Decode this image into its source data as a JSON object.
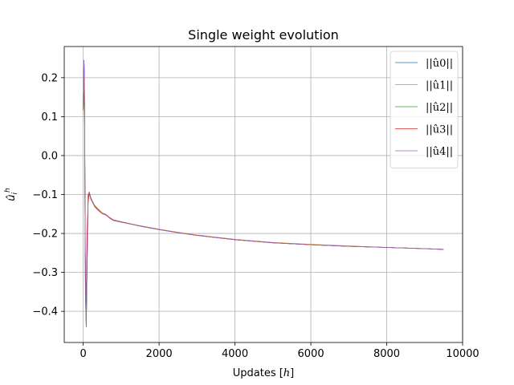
{
  "chart_data": {
    "type": "line",
    "title": "Single weight evolution",
    "xlabel": "Updates [h]",
    "ylabel": "û_i^h",
    "xlim": [
      -500,
      10000
    ],
    "ylim": [
      -0.48,
      0.28
    ],
    "xticks": [
      0,
      2000,
      4000,
      6000,
      8000,
      10000
    ],
    "xtick_labels": [
      "0",
      "2000",
      "4000",
      "6000",
      "8000",
      "10000"
    ],
    "yticks": [
      -0.4,
      -0.3,
      -0.2,
      -0.1,
      0.0,
      0.1,
      0.2
    ],
    "ytick_labels": [
      "−0.4",
      "−0.3",
      "−0.2",
      "−0.1",
      "0.0",
      "0.1",
      "0.2"
    ],
    "grid": true,
    "legend_position": "top-right",
    "series": [
      {
        "name": "||û0||",
        "color": "#1f77b4",
        "x": [
          0,
          10,
          20,
          30,
          40,
          50,
          60,
          80,
          100,
          130,
          160,
          200,
          250,
          300,
          400,
          500,
          600,
          700,
          800,
          1000,
          1500,
          2000,
          2500,
          3000,
          4000,
          5000,
          6000,
          7000,
          8000,
          9000,
          9500
        ],
        "y": [
          0.12,
          0.2,
          0.245,
          0.2,
          0.05,
          -0.2,
          -0.36,
          -0.44,
          -0.3,
          -0.1,
          -0.095,
          -0.11,
          -0.12,
          -0.13,
          -0.14,
          -0.148,
          -0.152,
          -0.16,
          -0.166,
          -0.17,
          -0.181,
          -0.19,
          -0.198,
          -0.205,
          -0.216,
          -0.224,
          -0.229,
          -0.233,
          -0.236,
          -0.239,
          -0.241
        ]
      },
      {
        "name": "||û1||",
        "color": "#ff7f0e",
        "x": [
          0,
          10,
          20,
          30,
          40,
          50,
          60,
          80,
          100,
          130,
          160,
          200,
          250,
          300,
          400,
          500,
          600,
          700,
          800,
          1000,
          1500,
          2000,
          2500,
          3000,
          4000,
          5000,
          6000,
          7000,
          8000,
          9000,
          9500
        ],
        "y": [
          0.115,
          0.19,
          0.24,
          0.19,
          0.04,
          -0.19,
          -0.35,
          -0.43,
          -0.29,
          -0.1,
          -0.093,
          -0.108,
          -0.118,
          -0.128,
          -0.138,
          -0.147,
          -0.151,
          -0.159,
          -0.165,
          -0.17,
          -0.18,
          -0.189,
          -0.197,
          -0.204,
          -0.215,
          -0.223,
          -0.228,
          -0.232,
          -0.236,
          -0.239,
          -0.241
        ]
      },
      {
        "name": "||û2||",
        "color": "#2ca02c",
        "x": [
          0,
          10,
          20,
          30,
          40,
          50,
          60,
          80,
          100,
          130,
          160,
          200,
          250,
          300,
          400,
          500,
          600,
          700,
          800,
          1000,
          1500,
          2000,
          2500,
          3000,
          4000,
          5000,
          6000,
          7000,
          8000,
          9000,
          9500
        ],
        "y": [
          0.118,
          0.195,
          0.242,
          0.195,
          0.045,
          -0.2,
          -0.37,
          -0.435,
          -0.3,
          -0.11,
          -0.094,
          -0.109,
          -0.119,
          -0.129,
          -0.139,
          -0.148,
          -0.152,
          -0.16,
          -0.166,
          -0.17,
          -0.181,
          -0.19,
          -0.198,
          -0.205,
          -0.216,
          -0.224,
          -0.229,
          -0.233,
          -0.236,
          -0.239,
          -0.241
        ]
      },
      {
        "name": "||û3||",
        "color": "#d62728",
        "x": [
          0,
          10,
          20,
          30,
          40,
          50,
          60,
          80,
          100,
          130,
          160,
          200,
          250,
          300,
          400,
          500,
          600,
          700,
          800,
          1000,
          1500,
          2000,
          2500,
          3000,
          4000,
          5000,
          6000,
          7000,
          8000,
          9000,
          9500
        ],
        "y": [
          0.12,
          0.2,
          0.238,
          0.185,
          0.03,
          -0.18,
          -0.3,
          -0.38,
          -0.2,
          -0.12,
          -0.096,
          -0.112,
          -0.121,
          -0.131,
          -0.141,
          -0.149,
          -0.153,
          -0.161,
          -0.167,
          -0.171,
          -0.181,
          -0.19,
          -0.198,
          -0.205,
          -0.216,
          -0.224,
          -0.229,
          -0.233,
          -0.236,
          -0.239,
          -0.241
        ]
      },
      {
        "name": "||û4||",
        "color": "#9467bd",
        "x": [
          0,
          10,
          20,
          30,
          40,
          50,
          60,
          80,
          100,
          130,
          160,
          200,
          250,
          300,
          400,
          500,
          600,
          700,
          800,
          1000,
          1500,
          2000,
          2500,
          3000,
          4000,
          5000,
          6000,
          7000,
          8000,
          9000,
          9500
        ],
        "y": [
          0.117,
          0.198,
          0.243,
          0.198,
          0.048,
          -0.21,
          -0.36,
          -0.43,
          -0.29,
          -0.1,
          -0.094,
          -0.11,
          -0.12,
          -0.13,
          -0.14,
          -0.148,
          -0.152,
          -0.16,
          -0.166,
          -0.17,
          -0.181,
          -0.19,
          -0.198,
          -0.205,
          -0.216,
          -0.224,
          -0.229,
          -0.233,
          -0.236,
          -0.239,
          -0.241
        ]
      }
    ]
  }
}
